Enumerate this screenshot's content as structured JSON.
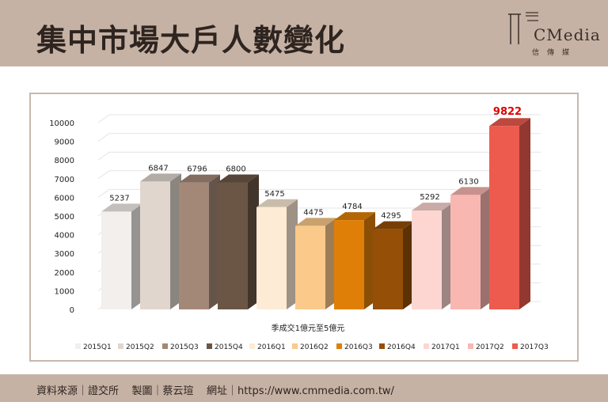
{
  "header": {
    "title": "集中市場大戶人數變化"
  },
  "logo": {
    "text": "CMedia",
    "subtitle": "信傳媒"
  },
  "footer": {
    "text": "資料來源｜證交所    製圖｜蔡云瑄    網址｜https://www.cmmedia.com.tw/"
  },
  "chart_data": {
    "type": "bar",
    "xlabel": "季成交1億元至5億元",
    "ylabel": "",
    "ylim": [
      0,
      10000
    ],
    "yticks": [
      0,
      1000,
      2000,
      3000,
      4000,
      5000,
      6000,
      7000,
      8000,
      9000,
      10000
    ],
    "categories": [
      "2015Q1",
      "2015Q2",
      "2015Q3",
      "2015Q4",
      "2016Q1",
      "2016Q2",
      "2016Q3",
      "2016Q4",
      "2017Q1",
      "2017Q2",
      "2017Q3"
    ],
    "values": [
      5237,
      6847,
      6796,
      6800,
      5475,
      4475,
      4784,
      4295,
      5292,
      6130,
      9822
    ],
    "colors": [
      "#f2efec",
      "#e0d6ce",
      "#a38878",
      "#6b5646",
      "#fdebd6",
      "#fbc98a",
      "#e07f08",
      "#954f07",
      "#fdd6d1",
      "#f9b7b1",
      "#ec5b4d"
    ],
    "highlight_color": "#e00000",
    "grid": true,
    "legend_position": "bottom"
  }
}
